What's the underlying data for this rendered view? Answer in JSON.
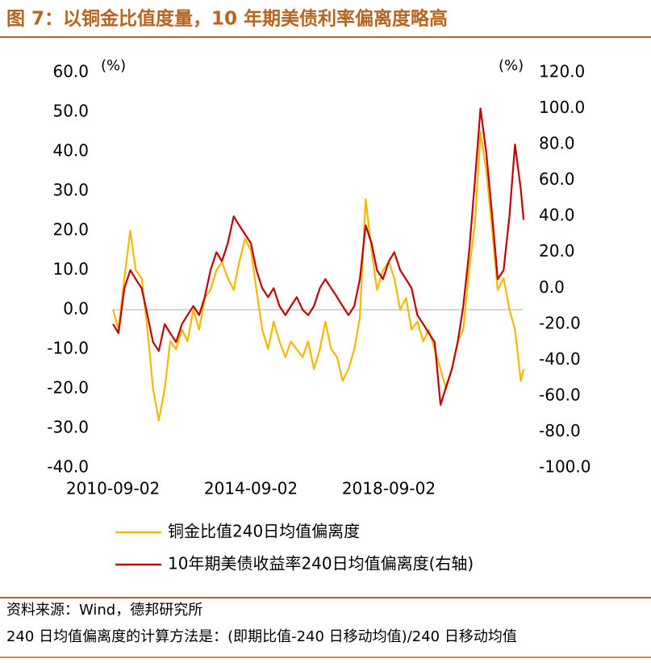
{
  "chart_data": {
    "type": "line",
    "title": "图 7：以铜金比值度量，10 年期美债利率偏离度略高",
    "y_unit": "(%)",
    "y2_unit": "(%)",
    "x": [
      2010.67,
      2010.83,
      2011.0,
      2011.17,
      2011.33,
      2011.5,
      2011.67,
      2011.83,
      2012.0,
      2012.17,
      2012.33,
      2012.5,
      2012.67,
      2012.83,
      2013.0,
      2013.17,
      2013.33,
      2013.5,
      2013.67,
      2013.83,
      2014.0,
      2014.17,
      2014.33,
      2014.5,
      2014.67,
      2014.83,
      2015.0,
      2015.17,
      2015.33,
      2015.5,
      2015.67,
      2015.83,
      2016.0,
      2016.17,
      2016.33,
      2016.5,
      2016.67,
      2016.83,
      2017.0,
      2017.17,
      2017.33,
      2017.5,
      2017.67,
      2017.83,
      2018.0,
      2018.17,
      2018.33,
      2018.5,
      2018.67,
      2018.83,
      2019.0,
      2019.17,
      2019.33,
      2019.5,
      2019.67,
      2019.83,
      2020.0,
      2020.17,
      2020.33,
      2020.5,
      2020.67,
      2020.83,
      2021.0,
      2021.17,
      2021.33,
      2021.5,
      2021.67,
      2021.83,
      2022.0,
      2022.17,
      2022.33,
      2022.5,
      2022.58
    ],
    "series": [
      {
        "name": "铜金比值240日均值偏离度",
        "color": "#f5b800",
        "values": [
          0,
          -5,
          8,
          20,
          10,
          8,
          -5,
          -20,
          -28,
          -20,
          -8,
          -10,
          -5,
          -8,
          0,
          -5,
          3,
          5,
          10,
          12,
          8,
          5,
          12,
          18,
          15,
          5,
          -5,
          -10,
          -3,
          -8,
          -12,
          -8,
          -10,
          -12,
          -8,
          -15,
          -10,
          -3,
          -10,
          -12,
          -18,
          -15,
          -10,
          -2,
          28,
          15,
          5,
          10,
          12,
          8,
          0,
          3,
          -5,
          -3,
          -8,
          -5,
          -10,
          -15,
          -20,
          -15,
          -8,
          -5,
          10,
          22,
          45,
          35,
          20,
          5,
          8,
          0,
          -5,
          -18,
          -15
        ]
      },
      {
        "name": "10年期美债收益率240日均值偏离度(右轴)",
        "color": "#c00000",
        "axis": "y2",
        "values": [
          -20,
          -25,
          0,
          10,
          5,
          0,
          -15,
          -30,
          -35,
          -20,
          -25,
          -30,
          -20,
          -15,
          -10,
          -15,
          -5,
          10,
          20,
          15,
          25,
          40,
          35,
          30,
          25,
          10,
          0,
          -5,
          0,
          -10,
          -15,
          -10,
          -5,
          -12,
          -15,
          -10,
          0,
          5,
          0,
          -5,
          -10,
          -15,
          -10,
          5,
          35,
          25,
          10,
          5,
          15,
          20,
          10,
          5,
          0,
          -15,
          -20,
          -25,
          -30,
          -65,
          -55,
          -45,
          -30,
          -10,
          20,
          60,
          100,
          75,
          40,
          5,
          10,
          40,
          80,
          55,
          38
        ]
      }
    ],
    "xlim": [
      2010.2,
      2023.0
    ],
    "xticks": [
      {
        "value": 2010.67,
        "label": "2010-09-02"
      },
      {
        "value": 2014.67,
        "label": "2014-09-02"
      },
      {
        "value": 2018.67,
        "label": "2018-09-02"
      }
    ],
    "ylim": [
      -40,
      60
    ],
    "yticks": [
      {
        "value": -40,
        "label": "-40.0"
      },
      {
        "value": -30,
        "label": "-30.0"
      },
      {
        "value": -20,
        "label": "-20.0"
      },
      {
        "value": -10,
        "label": "-10.0"
      },
      {
        "value": 0,
        "label": "0.0"
      },
      {
        "value": 10,
        "label": "10.0"
      },
      {
        "value": 20,
        "label": "20.0"
      },
      {
        "value": 30,
        "label": "30.0"
      },
      {
        "value": 40,
        "label": "40.0"
      },
      {
        "value": 50,
        "label": "50.0"
      },
      {
        "value": 60,
        "label": "60.0"
      }
    ],
    "y2lim": [
      -100,
      120
    ],
    "y2ticks": [
      {
        "value": -100,
        "label": "-100.0"
      },
      {
        "value": -80,
        "label": "-80.0"
      },
      {
        "value": -60,
        "label": "-60.0"
      },
      {
        "value": -40,
        "label": "-40.0"
      },
      {
        "value": -20,
        "label": "-20.0"
      },
      {
        "value": 0,
        "label": "0.0"
      },
      {
        "value": 20,
        "label": "20.0"
      },
      {
        "value": 40,
        "label": "40.0"
      },
      {
        "value": 60,
        "label": "60.0"
      },
      {
        "value": 80,
        "label": "80.0"
      },
      {
        "value": 100,
        "label": "100.0"
      },
      {
        "value": 120,
        "label": "120.0"
      }
    ],
    "source": "资料来源：Wind，德邦研究所",
    "note": "240 日均值偏离度的计算方法是：(即期比值-240 日移动均值)/240 日移动均值"
  }
}
